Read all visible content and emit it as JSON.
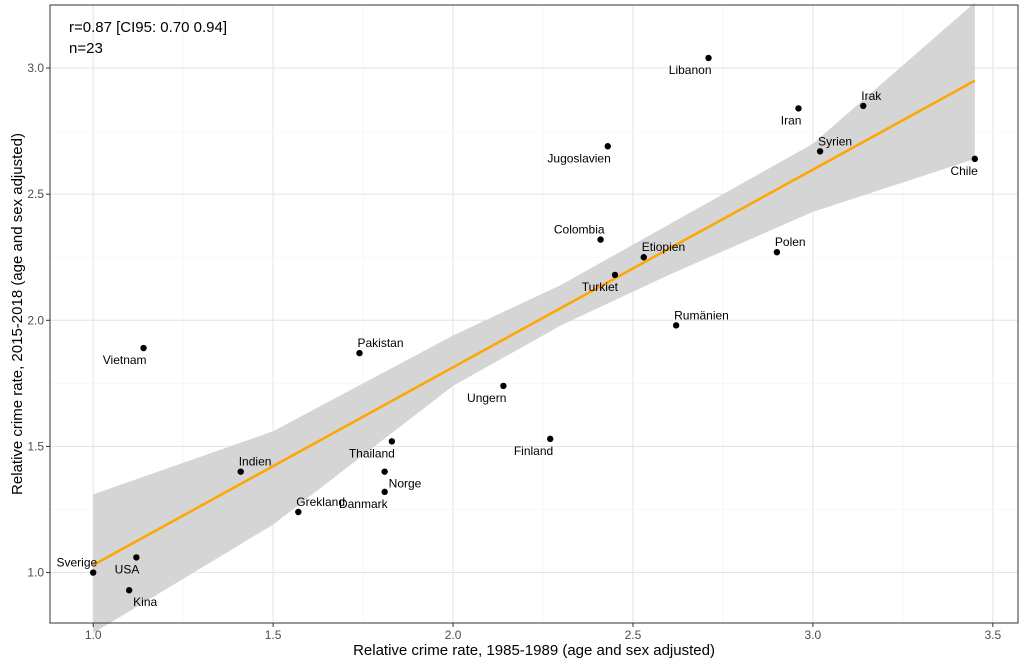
{
  "chart_data": {
    "type": "scatter",
    "title": "",
    "xlabel": "Relative crime rate, 1985-1989 (age and sex adjusted)",
    "ylabel": "Relative crime rate, 2015-2018 (age and sex adjusted)",
    "xlim": [
      0.88,
      3.57
    ],
    "ylim": [
      0.8,
      3.25
    ],
    "xticks": [
      "1.0",
      "1.5",
      "2.0",
      "2.5",
      "3.0",
      "3.5"
    ],
    "yticks": [
      "1.0",
      "1.5",
      "2.0",
      "2.5",
      "3.0"
    ],
    "grid": true,
    "annotations": [
      "r=0.87 [CI95: 0.70 0.94]",
      "n=23"
    ],
    "regression": {
      "color": "#FFA500",
      "band_color": "#D3D3D3",
      "line": [
        [
          1.0,
          1.03
        ],
        [
          3.45,
          2.95
        ]
      ],
      "ci_upper": [
        [
          1.0,
          1.31
        ],
        [
          1.5,
          1.56
        ],
        [
          2.0,
          1.94
        ],
        [
          2.3,
          2.14
        ],
        [
          2.6,
          2.38
        ],
        [
          3.0,
          2.7
        ],
        [
          3.45,
          3.26
        ]
      ],
      "ci_lower": [
        [
          1.0,
          0.76
        ],
        [
          1.5,
          1.19
        ],
        [
          2.0,
          1.74
        ],
        [
          2.3,
          1.98
        ],
        [
          2.6,
          2.18
        ],
        [
          3.0,
          2.43
        ],
        [
          3.45,
          2.64
        ]
      ]
    },
    "points": [
      {
        "label": "Sverige",
        "x": 1.0,
        "y": 1.0,
        "lpos": "above-left"
      },
      {
        "label": "USA",
        "x": 1.12,
        "y": 1.06,
        "lpos": "below-left"
      },
      {
        "label": "Kina",
        "x": 1.1,
        "y": 0.93,
        "lpos": "below-right"
      },
      {
        "label": "Vietnam",
        "x": 1.14,
        "y": 1.89,
        "lpos": "below-left"
      },
      {
        "label": "Indien",
        "x": 1.41,
        "y": 1.4,
        "lpos": "above-right"
      },
      {
        "label": "Grekland",
        "x": 1.57,
        "y": 1.24,
        "lpos": "above-right"
      },
      {
        "label": "Pakistan",
        "x": 1.74,
        "y": 1.87,
        "lpos": "above-right"
      },
      {
        "label": "Thailand",
        "x": 1.83,
        "y": 1.52,
        "lpos": "below-left"
      },
      {
        "label": "Norge",
        "x": 1.81,
        "y": 1.4,
        "lpos": "below-right"
      },
      {
        "label": "Danmark",
        "x": 1.81,
        "y": 1.32,
        "lpos": "below-left"
      },
      {
        "label": "Ungern",
        "x": 2.14,
        "y": 1.74,
        "lpos": "below-left"
      },
      {
        "label": "Finland",
        "x": 2.27,
        "y": 1.53,
        "lpos": "below-left"
      },
      {
        "label": "Colombia",
        "x": 2.41,
        "y": 2.32,
        "lpos": "above-left"
      },
      {
        "label": "Jugoslavien",
        "x": 2.43,
        "y": 2.69,
        "lpos": "below-left"
      },
      {
        "label": "Turkiet",
        "x": 2.45,
        "y": 2.18,
        "lpos": "below-left"
      },
      {
        "label": "Etiopien",
        "x": 2.53,
        "y": 2.25,
        "lpos": "above-right"
      },
      {
        "label": "Rumänien",
        "x": 2.62,
        "y": 1.98,
        "lpos": "above-right"
      },
      {
        "label": "Libanon",
        "x": 2.71,
        "y": 3.04,
        "lpos": "below-left"
      },
      {
        "label": "Polen",
        "x": 2.9,
        "y": 2.27,
        "lpos": "above-right"
      },
      {
        "label": "Iran",
        "x": 2.96,
        "y": 2.84,
        "lpos": "below-left"
      },
      {
        "label": "Syrien",
        "x": 3.02,
        "y": 2.67,
        "lpos": "above-right"
      },
      {
        "label": "Irak",
        "x": 3.14,
        "y": 2.85,
        "lpos": "above-right"
      },
      {
        "label": "Chile",
        "x": 3.45,
        "y": 2.64,
        "lpos": "below-left"
      }
    ]
  }
}
